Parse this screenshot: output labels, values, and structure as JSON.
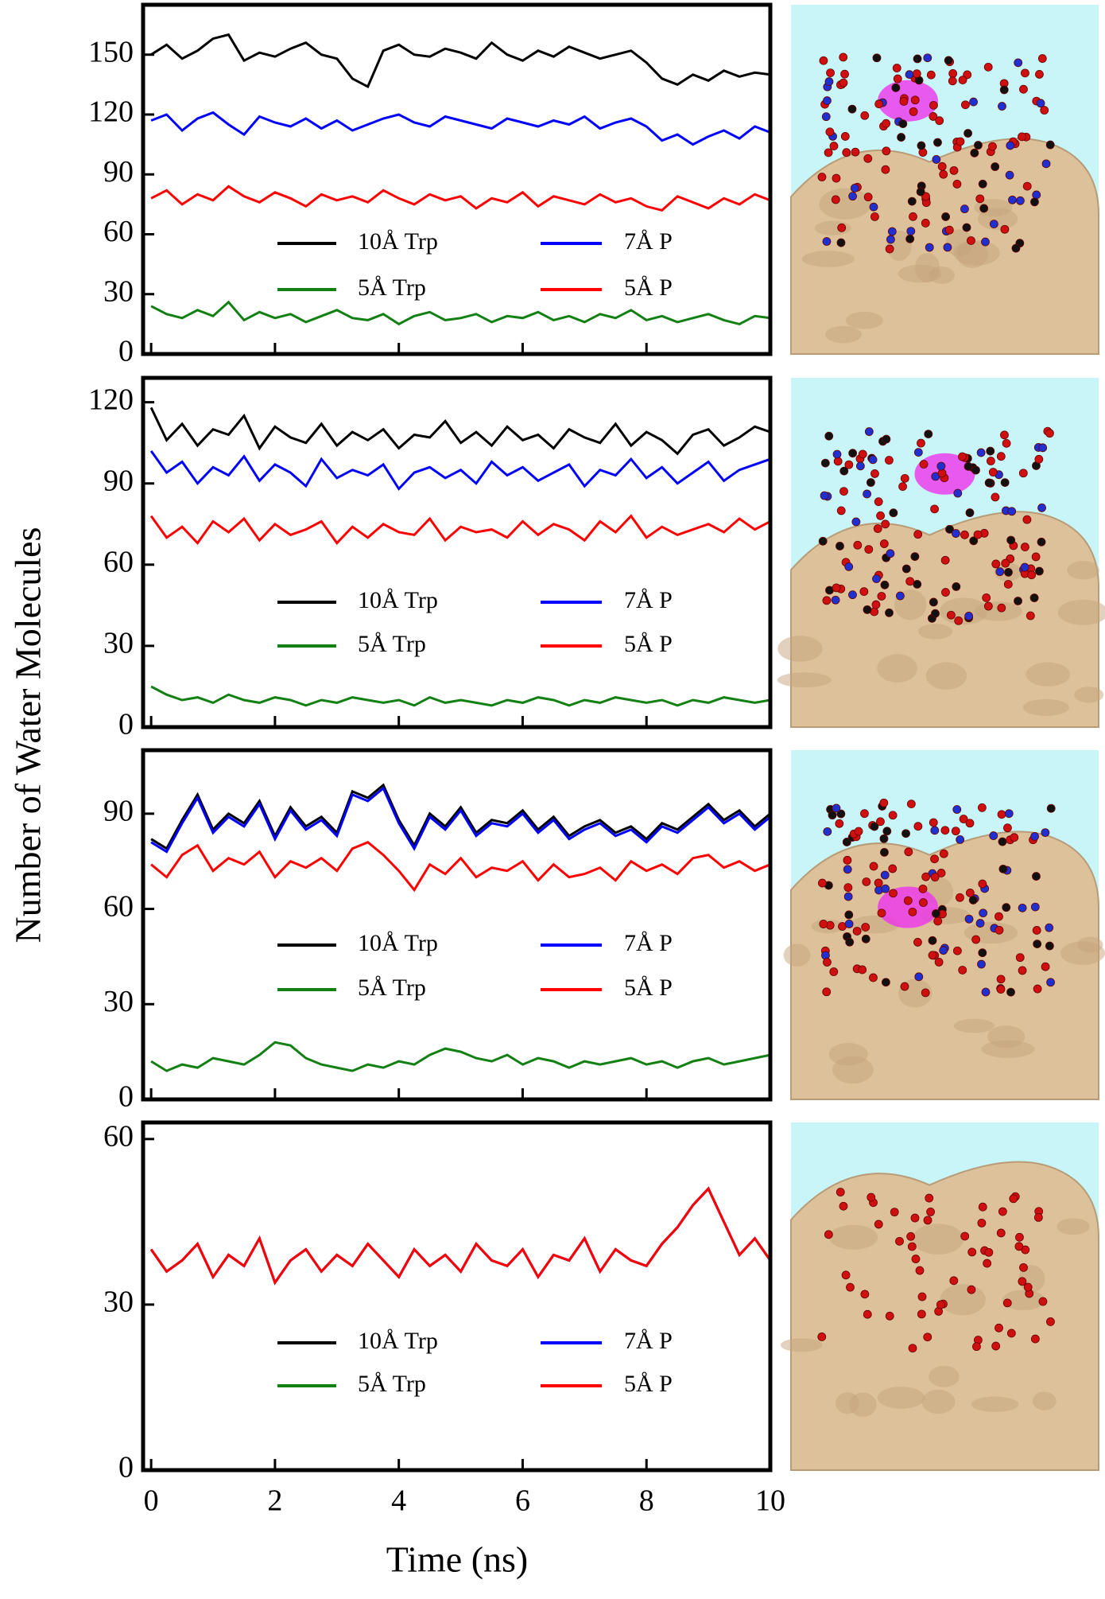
{
  "xlabel": "Time (ns)",
  "ylabel": "Number of Water Molecules",
  "chart_data": [
    {
      "type": "line",
      "xlim": [
        -0.13,
        10
      ],
      "xticks": [
        0,
        2,
        4,
        6,
        8,
        10
      ],
      "ylim": [
        0,
        175
      ],
      "yticks": [
        0,
        30,
        60,
        90,
        120,
        150
      ],
      "x": [
        0,
        0.25,
        0.5,
        0.75,
        1,
        1.25,
        1.5,
        1.75,
        2,
        2.25,
        2.5,
        2.75,
        3,
        3.25,
        3.5,
        3.75,
        4,
        4.25,
        4.5,
        4.75,
        5,
        5.25,
        5.5,
        5.75,
        6,
        6.25,
        6.5,
        6.75,
        7,
        7.25,
        7.5,
        7.75,
        8,
        8.25,
        8.5,
        8.75,
        9,
        9.25,
        9.5,
        9.75,
        10
      ],
      "series": [
        {
          "name": "10Å Trp",
          "color": "#000000",
          "values": [
            150,
            155,
            148,
            152,
            158,
            160,
            147,
            151,
            149,
            153,
            156,
            150,
            148,
            138,
            134,
            152,
            155,
            150,
            149,
            153,
            151,
            148,
            156,
            150,
            147,
            152,
            149,
            154,
            151,
            148,
            150,
            152,
            146,
            138,
            135,
            140,
            137,
            142,
            139,
            141,
            140
          ]
        },
        {
          "name": "5Å Trp",
          "color": "#138013",
          "values": [
            24,
            20,
            18,
            22,
            19,
            26,
            17,
            21,
            18,
            20,
            16,
            19,
            22,
            18,
            17,
            20,
            15,
            19,
            21,
            17,
            18,
            20,
            16,
            19,
            18,
            21,
            17,
            19,
            16,
            20,
            18,
            22,
            17,
            19,
            16,
            18,
            20,
            17,
            15,
            19,
            18
          ]
        },
        {
          "name": "7Å P",
          "color": "#0000ff",
          "values": [
            117,
            120,
            112,
            118,
            121,
            115,
            110,
            119,
            116,
            114,
            118,
            113,
            117,
            112,
            115,
            118,
            120,
            116,
            114,
            119,
            117,
            115,
            113,
            118,
            116,
            114,
            117,
            115,
            119,
            113,
            116,
            118,
            114,
            107,
            110,
            105,
            109,
            112,
            108,
            114,
            111
          ]
        },
        {
          "name": "5Å P",
          "color": "#ff0000",
          "values": [
            78,
            82,
            75,
            80,
            77,
            84,
            79,
            76,
            81,
            78,
            74,
            80,
            77,
            79,
            76,
            82,
            78,
            75,
            80,
            77,
            79,
            73,
            78,
            76,
            81,
            74,
            79,
            77,
            75,
            80,
            76,
            78,
            74,
            72,
            79,
            76,
            73,
            78,
            75,
            80,
            77
          ]
        }
      ]
    },
    {
      "type": "line",
      "xlim": [
        -0.13,
        10
      ],
      "xticks": [
        0,
        2,
        4,
        6,
        8,
        10
      ],
      "ylim": [
        0,
        129
      ],
      "yticks": [
        0,
        30,
        60,
        90,
        120
      ],
      "x": [
        0,
        0.25,
        0.5,
        0.75,
        1,
        1.25,
        1.5,
        1.75,
        2,
        2.25,
        2.5,
        2.75,
        3,
        3.25,
        3.5,
        3.75,
        4,
        4.25,
        4.5,
        4.75,
        5,
        5.25,
        5.5,
        5.75,
        6,
        6.25,
        6.5,
        6.75,
        7,
        7.25,
        7.5,
        7.75,
        8,
        8.25,
        8.5,
        8.75,
        9,
        9.25,
        9.5,
        9.75,
        10
      ],
      "series": [
        {
          "name": "10Å Trp",
          "color": "#000000",
          "values": [
            118,
            106,
            112,
            104,
            110,
            108,
            115,
            103,
            111,
            107,
            105,
            112,
            104,
            109,
            106,
            110,
            103,
            108,
            107,
            113,
            105,
            109,
            104,
            111,
            106,
            108,
            103,
            110,
            107,
            105,
            112,
            104,
            109,
            106,
            101,
            108,
            110,
            104,
            107,
            111,
            109
          ]
        },
        {
          "name": "5Å Trp",
          "color": "#138013",
          "values": [
            15,
            12,
            10,
            11,
            9,
            12,
            10,
            9,
            11,
            10,
            8,
            10,
            9,
            11,
            10,
            9,
            10,
            8,
            11,
            9,
            10,
            9,
            8,
            10,
            9,
            11,
            10,
            8,
            10,
            9,
            11,
            10,
            9,
            10,
            8,
            10,
            9,
            11,
            10,
            9,
            10
          ]
        },
        {
          "name": "7Å P",
          "color": "#0000ff",
          "values": [
            102,
            94,
            98,
            90,
            96,
            93,
            100,
            91,
            97,
            94,
            89,
            99,
            92,
            95,
            93,
            97,
            88,
            94,
            96,
            92,
            95,
            90,
            98,
            93,
            96,
            91,
            94,
            97,
            89,
            95,
            93,
            99,
            92,
            96,
            90,
            94,
            98,
            91,
            95,
            97,
            99
          ]
        },
        {
          "name": "5Å P",
          "color": "#ff0000",
          "values": [
            78,
            70,
            74,
            68,
            76,
            72,
            77,
            69,
            75,
            71,
            73,
            76,
            68,
            74,
            70,
            75,
            72,
            71,
            77,
            69,
            74,
            72,
            73,
            70,
            76,
            71,
            75,
            73,
            69,
            76,
            72,
            78,
            70,
            74,
            71,
            73,
            75,
            72,
            77,
            73,
            76
          ]
        }
      ]
    },
    {
      "type": "line",
      "xlim": [
        -0.13,
        10
      ],
      "xticks": [
        0,
        2,
        4,
        6,
        8,
        10
      ],
      "ylim": [
        0,
        110
      ],
      "yticks": [
        0,
        30,
        60,
        90
      ],
      "x": [
        0,
        0.25,
        0.5,
        0.75,
        1,
        1.25,
        1.5,
        1.75,
        2,
        2.25,
        2.5,
        2.75,
        3,
        3.25,
        3.5,
        3.75,
        4,
        4.25,
        4.5,
        4.75,
        5,
        5.25,
        5.5,
        5.75,
        6,
        6.25,
        6.5,
        6.75,
        7,
        7.25,
        7.5,
        7.75,
        8,
        8.25,
        8.5,
        8.75,
        9,
        9.25,
        9.5,
        9.75,
        10
      ],
      "series": [
        {
          "name": "10Å Trp",
          "color": "#000000",
          "values": [
            82,
            79,
            88,
            96,
            85,
            90,
            87,
            94,
            83,
            92,
            86,
            89,
            84,
            97,
            95,
            99,
            88,
            80,
            90,
            86,
            92,
            84,
            88,
            87,
            91,
            85,
            89,
            83,
            86,
            88,
            84,
            86,
            82,
            87,
            85,
            89,
            93,
            88,
            91,
            86,
            90
          ]
        },
        {
          "name": "5Å Trp",
          "color": "#138013",
          "values": [
            12,
            9,
            11,
            10,
            13,
            12,
            11,
            14,
            18,
            17,
            13,
            11,
            10,
            9,
            11,
            10,
            12,
            11,
            14,
            16,
            15,
            13,
            12,
            14,
            11,
            13,
            12,
            10,
            12,
            11,
            12,
            13,
            11,
            12,
            10,
            12,
            13,
            11,
            12,
            13,
            14
          ]
        },
        {
          "name": "7Å P",
          "color": "#0000ff",
          "values": [
            81,
            78,
            87,
            95,
            84,
            89,
            86,
            93,
            82,
            91,
            85,
            88,
            83,
            96,
            94,
            98,
            87,
            79,
            89,
            85,
            91,
            83,
            87,
            86,
            90,
            84,
            88,
            82,
            85,
            87,
            83,
            85,
            81,
            86,
            84,
            88,
            92,
            87,
            90,
            85,
            89
          ]
        },
        {
          "name": "5Å P",
          "color": "#ff0000",
          "values": [
            74,
            70,
            77,
            80,
            72,
            76,
            74,
            78,
            70,
            75,
            73,
            76,
            72,
            79,
            81,
            77,
            72,
            66,
            74,
            71,
            76,
            70,
            73,
            72,
            75,
            69,
            74,
            70,
            71,
            73,
            69,
            75,
            72,
            74,
            71,
            76,
            77,
            73,
            75,
            72,
            74
          ]
        }
      ]
    },
    {
      "type": "line",
      "xlim": [
        -0.13,
        10
      ],
      "xticks": [
        0,
        2,
        4,
        6,
        8,
        10
      ],
      "ylim": [
        0,
        63
      ],
      "yticks": [
        0,
        30,
        60
      ],
      "x": [
        0,
        0.25,
        0.5,
        0.75,
        1,
        1.25,
        1.5,
        1.75,
        2,
        2.25,
        2.5,
        2.75,
        3,
        3.25,
        3.5,
        3.75,
        4,
        4.25,
        4.5,
        4.75,
        5,
        5.25,
        5.5,
        5.75,
        6,
        6.25,
        6.5,
        6.75,
        7,
        7.25,
        7.5,
        7.75,
        8,
        8.25,
        8.5,
        8.75,
        9,
        9.25,
        9.5,
        9.75,
        10
      ],
      "series": [
        {
          "name": "10Å Trp",
          "color": "#000000",
          "values": [
            40,
            36,
            38,
            41,
            35,
            39,
            37,
            42,
            34,
            38,
            40,
            36,
            39,
            37,
            41,
            38,
            35,
            40,
            37,
            39,
            36,
            41,
            38,
            37,
            40,
            35,
            39,
            38,
            42,
            36,
            40,
            38,
            37,
            41,
            44,
            48,
            51,
            45,
            39,
            42,
            38
          ]
        },
        {
          "name": "5Å Trp",
          "color": "#138013",
          "values": [
            0,
            0,
            0,
            0,
            0,
            0,
            0,
            0,
            0,
            0,
            0,
            0,
            0,
            0,
            0,
            0,
            0,
            0,
            0,
            0,
            0,
            0,
            0,
            0,
            0,
            0,
            0,
            0,
            0,
            0,
            0,
            0,
            0,
            0,
            0,
            0,
            0,
            0,
            0,
            0,
            0
          ]
        },
        {
          "name": "7Å P",
          "color": "#0000ff",
          "values": [
            40,
            36,
            38,
            41,
            35,
            39,
            37,
            42,
            34,
            38,
            40,
            36,
            39,
            37,
            41,
            38,
            35,
            40,
            37,
            39,
            36,
            41,
            38,
            37,
            40,
            35,
            39,
            38,
            42,
            36,
            40,
            38,
            37,
            41,
            44,
            48,
            51,
            45,
            39,
            42,
            38
          ]
        },
        {
          "name": "5Å P",
          "color": "#ff0000",
          "values": [
            40,
            36,
            38,
            41,
            35,
            39,
            37,
            42,
            34,
            38,
            40,
            36,
            39,
            37,
            41,
            38,
            35,
            40,
            37,
            39,
            36,
            41,
            38,
            37,
            40,
            35,
            39,
            38,
            42,
            36,
            40,
            38,
            37,
            41,
            44,
            48,
            51,
            45,
            39,
            42,
            38
          ]
        }
      ]
    }
  ]
}
